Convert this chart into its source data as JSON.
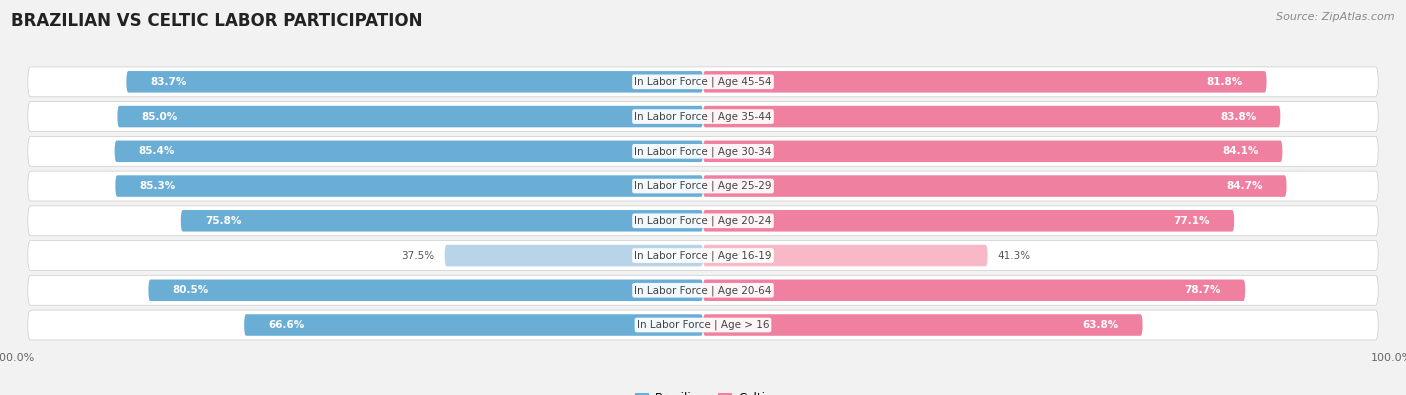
{
  "title": "BRAZILIAN VS CELTIC LABOR PARTICIPATION",
  "source": "Source: ZipAtlas.com",
  "categories": [
    "In Labor Force | Age > 16",
    "In Labor Force | Age 20-64",
    "In Labor Force | Age 16-19",
    "In Labor Force | Age 20-24",
    "In Labor Force | Age 25-29",
    "In Labor Force | Age 30-34",
    "In Labor Force | Age 35-44",
    "In Labor Force | Age 45-54"
  ],
  "brazilian_values": [
    66.6,
    80.5,
    37.5,
    75.8,
    85.3,
    85.4,
    85.0,
    83.7
  ],
  "celtic_values": [
    63.8,
    78.7,
    41.3,
    77.1,
    84.7,
    84.1,
    83.8,
    81.8
  ],
  "brazilian_colors": [
    "#6aaed6",
    "#6aaed6",
    "#b8d4e8",
    "#6aaed6",
    "#6aaed6",
    "#6aaed6",
    "#6aaed6",
    "#6aaed6"
  ],
  "celtic_colors": [
    "#f080a0",
    "#f080a0",
    "#f8b8c8",
    "#f080a0",
    "#f080a0",
    "#f080a0",
    "#f080a0",
    "#f080a0"
  ],
  "legend_brazilian_color": "#6aaed6",
  "legend_celtic_color": "#f080a0",
  "bg_color": "#f0f0f0",
  "row_color_even": "#e8e8e8",
  "row_color_odd": "#f5f5f5",
  "title_fontsize": 12,
  "source_fontsize": 8,
  "label_fontsize": 7.5,
  "value_fontsize": 7.5
}
